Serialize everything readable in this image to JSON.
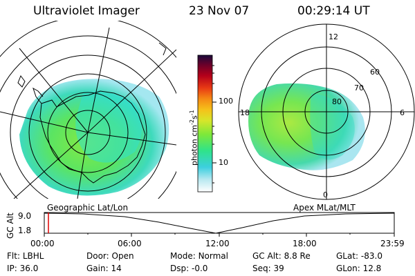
{
  "header": {
    "instrument": "Ultraviolet Imager",
    "date": "23 Nov 07",
    "time": "00:29:14 UT"
  },
  "left_map": {
    "caption": "Geographic Lat/Lon"
  },
  "right_map": {
    "caption": "Apex MLat/MLT",
    "mlt_labels": [
      "12",
      "18",
      "6",
      "0"
    ],
    "lat_labels": [
      "60",
      "70",
      "80"
    ]
  },
  "colorbar": {
    "unit_label": "photon cm",
    "unit_sup1": "-2",
    "unit_mid": "s",
    "unit_sup2": "-1",
    "ticks": [
      "100",
      "10"
    ],
    "scale": "log",
    "colors": [
      "#ffffff",
      "#b8e8f0",
      "#3ccfdf",
      "#2fe38a",
      "#7de83a",
      "#d6e62a",
      "#f5c21a",
      "#f58a14",
      "#e83a14",
      "#b4001a",
      "#6a002a",
      "#1a0a3a"
    ]
  },
  "altitude_plot": {
    "ylabel": "GC Alt",
    "ytick_top": "9.0",
    "ytick_bottom": "1.8",
    "xticks": [
      "00:00",
      "06:00",
      "12:00",
      "18:00",
      "23:59"
    ],
    "marker_color": "#e00000"
  },
  "status": {
    "row1": [
      {
        "label": "Flt:",
        "value": "LBHL"
      },
      {
        "label": "Door:",
        "value": "Open"
      },
      {
        "label": "Mode:",
        "value": "Normal"
      },
      {
        "label": "GC Alt:",
        "value": "8.8 Re"
      },
      {
        "label": "GLat:",
        "value": "-83.0"
      }
    ],
    "row2": [
      {
        "label": "IP:",
        "value": "36.0"
      },
      {
        "label": "Gain:",
        "value": "14"
      },
      {
        "label": "Dsp:",
        "value": "-0.0"
      },
      {
        "label": "Seq:",
        "value": "39"
      },
      {
        "label": "GLon:",
        "value": "12.8"
      }
    ]
  }
}
